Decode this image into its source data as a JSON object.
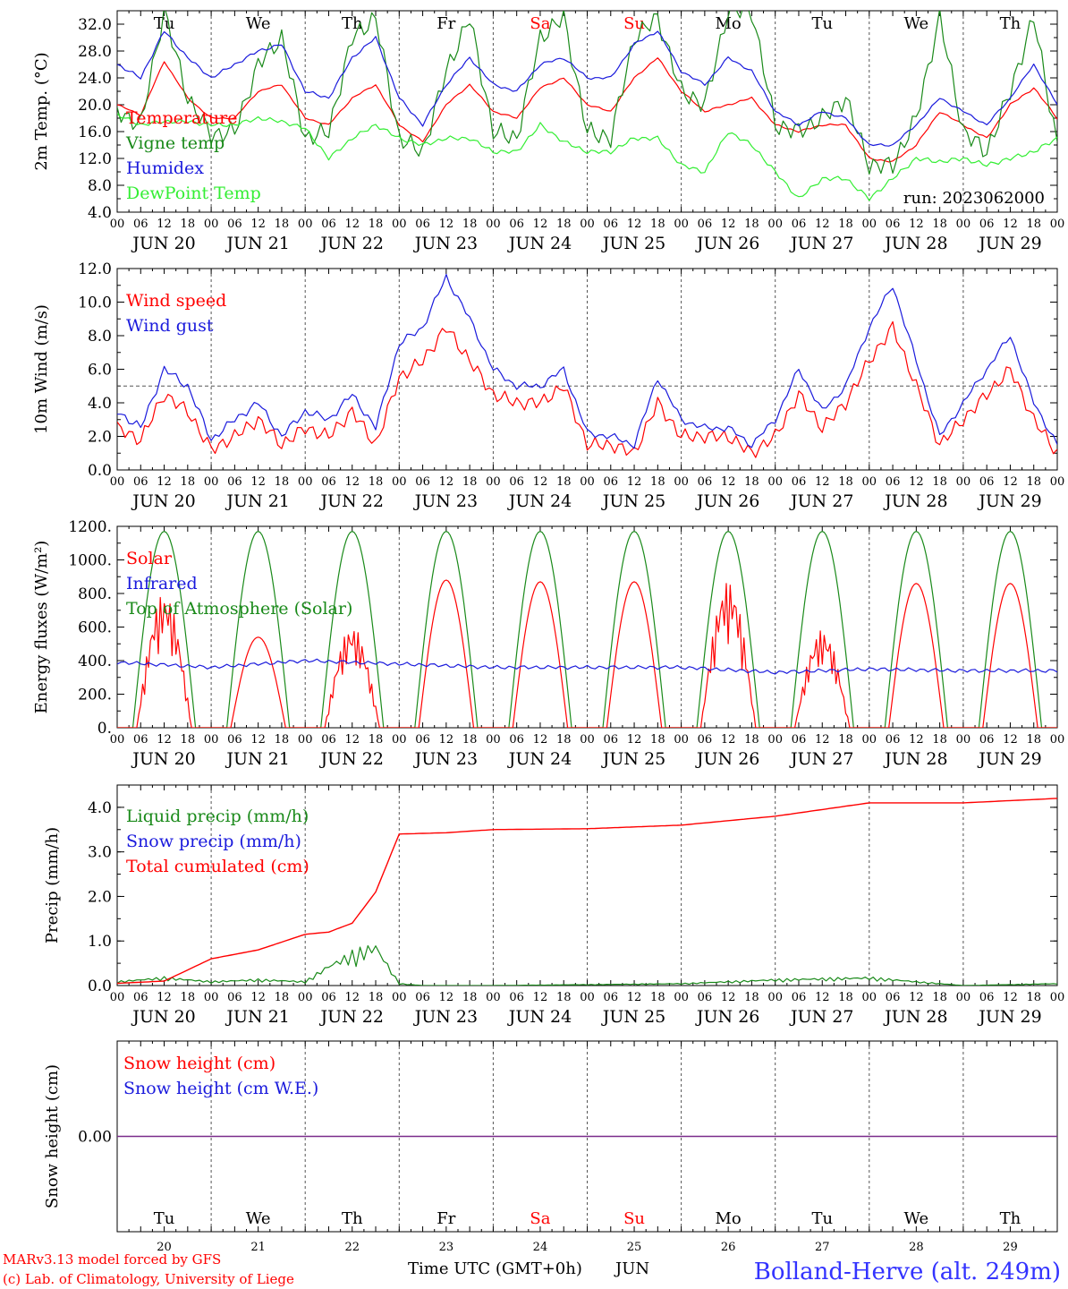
{
  "colors": {
    "red": "#ff0000",
    "green": "#1a8a1a",
    "blue": "#1a1adc",
    "lightgreen": "#33ee33",
    "purple": "#7a2a8a",
    "grid": "#555555",
    "station": "#3333ff"
  },
  "days": {
    "dates": [
      "JUN 20",
      "JUN 21",
      "JUN 22",
      "JUN 23",
      "JUN 24",
      "JUN 25",
      "JUN 26",
      "JUN 27",
      "JUN 28",
      "JUN 29"
    ],
    "day_numbers": [
      "20",
      "21",
      "22",
      "23",
      "24",
      "25",
      "26",
      "27",
      "28",
      "29"
    ],
    "weekdays": [
      "Tu",
      "We",
      "Th",
      "Fr",
      "Sa",
      "Su",
      "Mo",
      "Tu",
      "We",
      "Th"
    ],
    "weekend_flags": [
      false,
      false,
      false,
      false,
      true,
      true,
      false,
      false,
      false,
      false
    ],
    "hour_labels": [
      "00",
      "06",
      "12",
      "18"
    ],
    "final_hour_label": "00"
  },
  "footer": {
    "model": "MARv3.13 model forced by GFS",
    "lab": "(c) Lab. of Climatology, University of Liege",
    "axis_title": "Time UTC (GMT+0h)",
    "month": "JUN",
    "station": "Bolland-Herve (alt. 249m)"
  },
  "chart_data": [
    {
      "type": "line",
      "ylabel": "2m Temp. (°C)",
      "ylim": [
        4,
        34
      ],
      "yticks": [
        "4.0",
        "8.0",
        "12.0",
        "16.0",
        "20.0",
        "24.0",
        "28.0",
        "32.0"
      ],
      "annotation": "run: 2023062000",
      "legend_placement": "left",
      "series": [
        {
          "name": "Temperature",
          "color": "red",
          "x_hours": [
            0,
            6,
            12,
            18,
            24,
            30,
            36,
            42,
            48,
            54,
            60,
            66,
            72,
            78,
            84,
            90,
            96,
            102,
            108,
            114,
            120,
            126,
            132,
            138,
            144,
            150,
            156,
            162,
            168,
            174,
            180,
            186,
            192,
            198,
            204,
            210,
            216,
            222,
            228,
            234,
            240
          ],
          "values": [
            20,
            18.5,
            26.5,
            21,
            18,
            18,
            22,
            23,
            18,
            17,
            21,
            23,
            17,
            14.5,
            20,
            23,
            19,
            18,
            22.5,
            24,
            20,
            19,
            24,
            27,
            22,
            19,
            20,
            21,
            17,
            16,
            17,
            17,
            12,
            11.5,
            14,
            19,
            17,
            15,
            20,
            22.5,
            18
          ]
        },
        {
          "name": "Vigne temp",
          "color": "green",
          "x_hours": [
            0,
            6,
            12,
            18,
            24,
            30,
            36,
            42,
            48,
            54,
            60,
            66,
            72,
            78,
            84,
            90,
            96,
            102,
            108,
            114,
            120,
            126,
            132,
            138,
            144,
            150,
            156,
            162,
            168,
            174,
            180,
            186,
            192,
            198,
            204,
            210,
            216,
            222,
            228,
            234,
            240
          ],
          "values": [
            19,
            17,
            34,
            21,
            15.5,
            16,
            26,
            30,
            15,
            16,
            30,
            33,
            15,
            13,
            25,
            33,
            16,
            15,
            30,
            33,
            16,
            15,
            30,
            33,
            22,
            20,
            34,
            34,
            17,
            16,
            18,
            21,
            11,
            11,
            18,
            33,
            16,
            13,
            22,
            33,
            14
          ]
        },
        {
          "name": "Humidex",
          "color": "blue",
          "x_hours": [
            0,
            6,
            12,
            18,
            24,
            30,
            36,
            42,
            48,
            54,
            60,
            66,
            72,
            78,
            84,
            90,
            96,
            102,
            108,
            114,
            120,
            126,
            132,
            138,
            144,
            150,
            156,
            162,
            168,
            174,
            180,
            186,
            192,
            198,
            204,
            210,
            216,
            222,
            228,
            234,
            240
          ],
          "values": [
            26,
            24,
            31,
            27,
            24,
            26,
            28,
            29,
            22,
            21,
            27,
            30,
            21,
            17,
            23,
            27,
            23,
            22,
            26,
            27,
            24,
            24,
            29,
            31,
            25,
            23,
            27,
            25,
            19,
            17,
            19,
            18,
            14,
            14,
            17,
            21,
            19,
            17,
            21,
            26,
            20
          ]
        },
        {
          "name": "DewPoint Temp",
          "color": "lightgreen",
          "x_hours": [
            0,
            6,
            12,
            18,
            24,
            30,
            36,
            42,
            48,
            54,
            60,
            66,
            72,
            78,
            84,
            90,
            96,
            102,
            108,
            114,
            120,
            126,
            132,
            138,
            144,
            150,
            156,
            162,
            168,
            174,
            180,
            186,
            192,
            198,
            204,
            210,
            216,
            222,
            228,
            234,
            240
          ],
          "values": [
            18.5,
            17,
            17.5,
            17.5,
            17,
            17,
            18,
            17.5,
            16.5,
            12,
            15,
            17,
            15,
            14,
            15,
            15,
            13,
            13,
            17,
            14.5,
            13,
            13,
            15,
            15,
            11,
            10,
            16,
            14,
            10,
            6,
            9,
            9,
            6,
            9,
            12,
            11.5,
            12,
            11,
            12,
            13,
            15
          ]
        }
      ]
    },
    {
      "type": "line",
      "ylabel": "10m Wind (m/s)",
      "ylim": [
        0,
        12
      ],
      "yticks": [
        "0.0",
        "2.0",
        "4.0",
        "6.0",
        "8.0",
        "10.0",
        "12.0"
      ],
      "reference_line": 5,
      "legend_placement": "left",
      "series": [
        {
          "name": "Wind speed",
          "color": "red",
          "x_hours": [
            0,
            6,
            12,
            18,
            24,
            30,
            36,
            42,
            48,
            54,
            60,
            66,
            72,
            78,
            84,
            90,
            96,
            102,
            108,
            114,
            120,
            126,
            132,
            138,
            144,
            150,
            156,
            162,
            168,
            174,
            180,
            186,
            192,
            198,
            204,
            210,
            216,
            222,
            228,
            234,
            240
          ],
          "values": [
            2.5,
            1.8,
            4.5,
            3.5,
            1.2,
            2,
            3,
            1.5,
            2.5,
            2,
            3.5,
            1.5,
            5.5,
            6.5,
            8.5,
            6.5,
            4.5,
            4,
            4,
            5,
            1.5,
            1.5,
            1,
            4,
            2,
            2,
            2,
            1,
            2,
            4.5,
            2.5,
            4,
            6.5,
            8.5,
            5,
            1.5,
            3,
            4.5,
            6,
            3,
            1
          ]
        },
        {
          "name": "Wind gust",
          "color": "blue",
          "x_hours": [
            0,
            6,
            12,
            18,
            24,
            30,
            36,
            42,
            48,
            54,
            60,
            66,
            72,
            78,
            84,
            90,
            96,
            102,
            108,
            114,
            120,
            126,
            132,
            138,
            144,
            150,
            156,
            162,
            168,
            174,
            180,
            186,
            192,
            198,
            204,
            210,
            216,
            222,
            228,
            234,
            240
          ],
          "values": [
            3.5,
            2.5,
            6,
            5,
            1.8,
            3,
            4,
            2,
            3.5,
            3,
            4.5,
            2.5,
            7.5,
            8.5,
            11.5,
            9,
            6,
            5,
            5,
            6,
            2.2,
            2,
            1.5,
            5.5,
            3,
            2.5,
            2.5,
            1.5,
            3,
            6,
            3.5,
            5,
            8.5,
            11,
            6.5,
            2,
            4,
            6,
            8,
            4,
            1.5
          ]
        }
      ]
    },
    {
      "type": "line",
      "ylabel": "Energy fluxes (W/m²)",
      "ylim": [
        0,
        1200
      ],
      "yticks": [
        "0.",
        "200.",
        "400.",
        "600.",
        "800.",
        "1000.",
        "1200."
      ],
      "legend_placement": "left",
      "series": [
        {
          "name": "Solar",
          "color": "red",
          "peaks_per_day": [
            800,
            540,
            600,
            880,
            870,
            870,
            870,
            580,
            860,
            860
          ]
        },
        {
          "name": "Infrared",
          "color": "blue",
          "x_hours": [
            0,
            24,
            48,
            72,
            96,
            120,
            144,
            168,
            192,
            216,
            240
          ],
          "values": [
            390,
            360,
            400,
            380,
            360,
            360,
            360,
            330,
            350,
            340,
            340
          ]
        },
        {
          "name": "Top of Atmosphere (Solar)",
          "color": "green",
          "peak": 1170,
          "daylight_hours": [
            4,
            20
          ]
        }
      ]
    },
    {
      "type": "line",
      "ylabel": "Precip (mm/h)",
      "ylim": [
        0,
        4.5
      ],
      "yticks": [
        "0.0",
        "1.0",
        "2.0",
        "3.0",
        "4.0"
      ],
      "legend_placement": "left",
      "series": [
        {
          "name": "Liquid precip (mm/h)",
          "color": "green",
          "x_hours": [
            0,
            12,
            24,
            36,
            48,
            54,
            60,
            66,
            72,
            78,
            96,
            144,
            168,
            192,
            216,
            240
          ],
          "values": [
            0.1,
            0.2,
            0.1,
            0.15,
            0.1,
            0.5,
            0.8,
            1.0,
            0.05,
            0,
            0,
            0.05,
            0.15,
            0.2,
            0,
            0.05
          ]
        },
        {
          "name": "Snow precip (mm/h)",
          "color": "blue",
          "x_hours": [
            0,
            240
          ],
          "values": [
            0,
            0
          ]
        },
        {
          "name": "Total cumulated (cm)",
          "color": "red",
          "x_hours": [
            0,
            12,
            24,
            36,
            48,
            54,
            60,
            66,
            72,
            84,
            96,
            120,
            144,
            168,
            192,
            216,
            240
          ],
          "values": [
            0.05,
            0.1,
            0.6,
            0.8,
            1.15,
            1.2,
            1.4,
            2.1,
            3.4,
            3.43,
            3.5,
            3.52,
            3.6,
            3.8,
            4.1,
            4.1,
            4.2
          ]
        }
      ]
    },
    {
      "type": "line",
      "ylabel": "Snow height (cm)",
      "yticks": [
        "0.00"
      ],
      "legend_placement": "left",
      "series": [
        {
          "name": "Snow height (cm)",
          "color": "red",
          "x_hours": [
            0,
            240
          ],
          "values": [
            0,
            0
          ]
        },
        {
          "name": "Snow height (cm W.E.)",
          "color": "blue",
          "x_hours": [
            0,
            240
          ],
          "values": [
            0,
            0
          ]
        }
      ]
    }
  ]
}
